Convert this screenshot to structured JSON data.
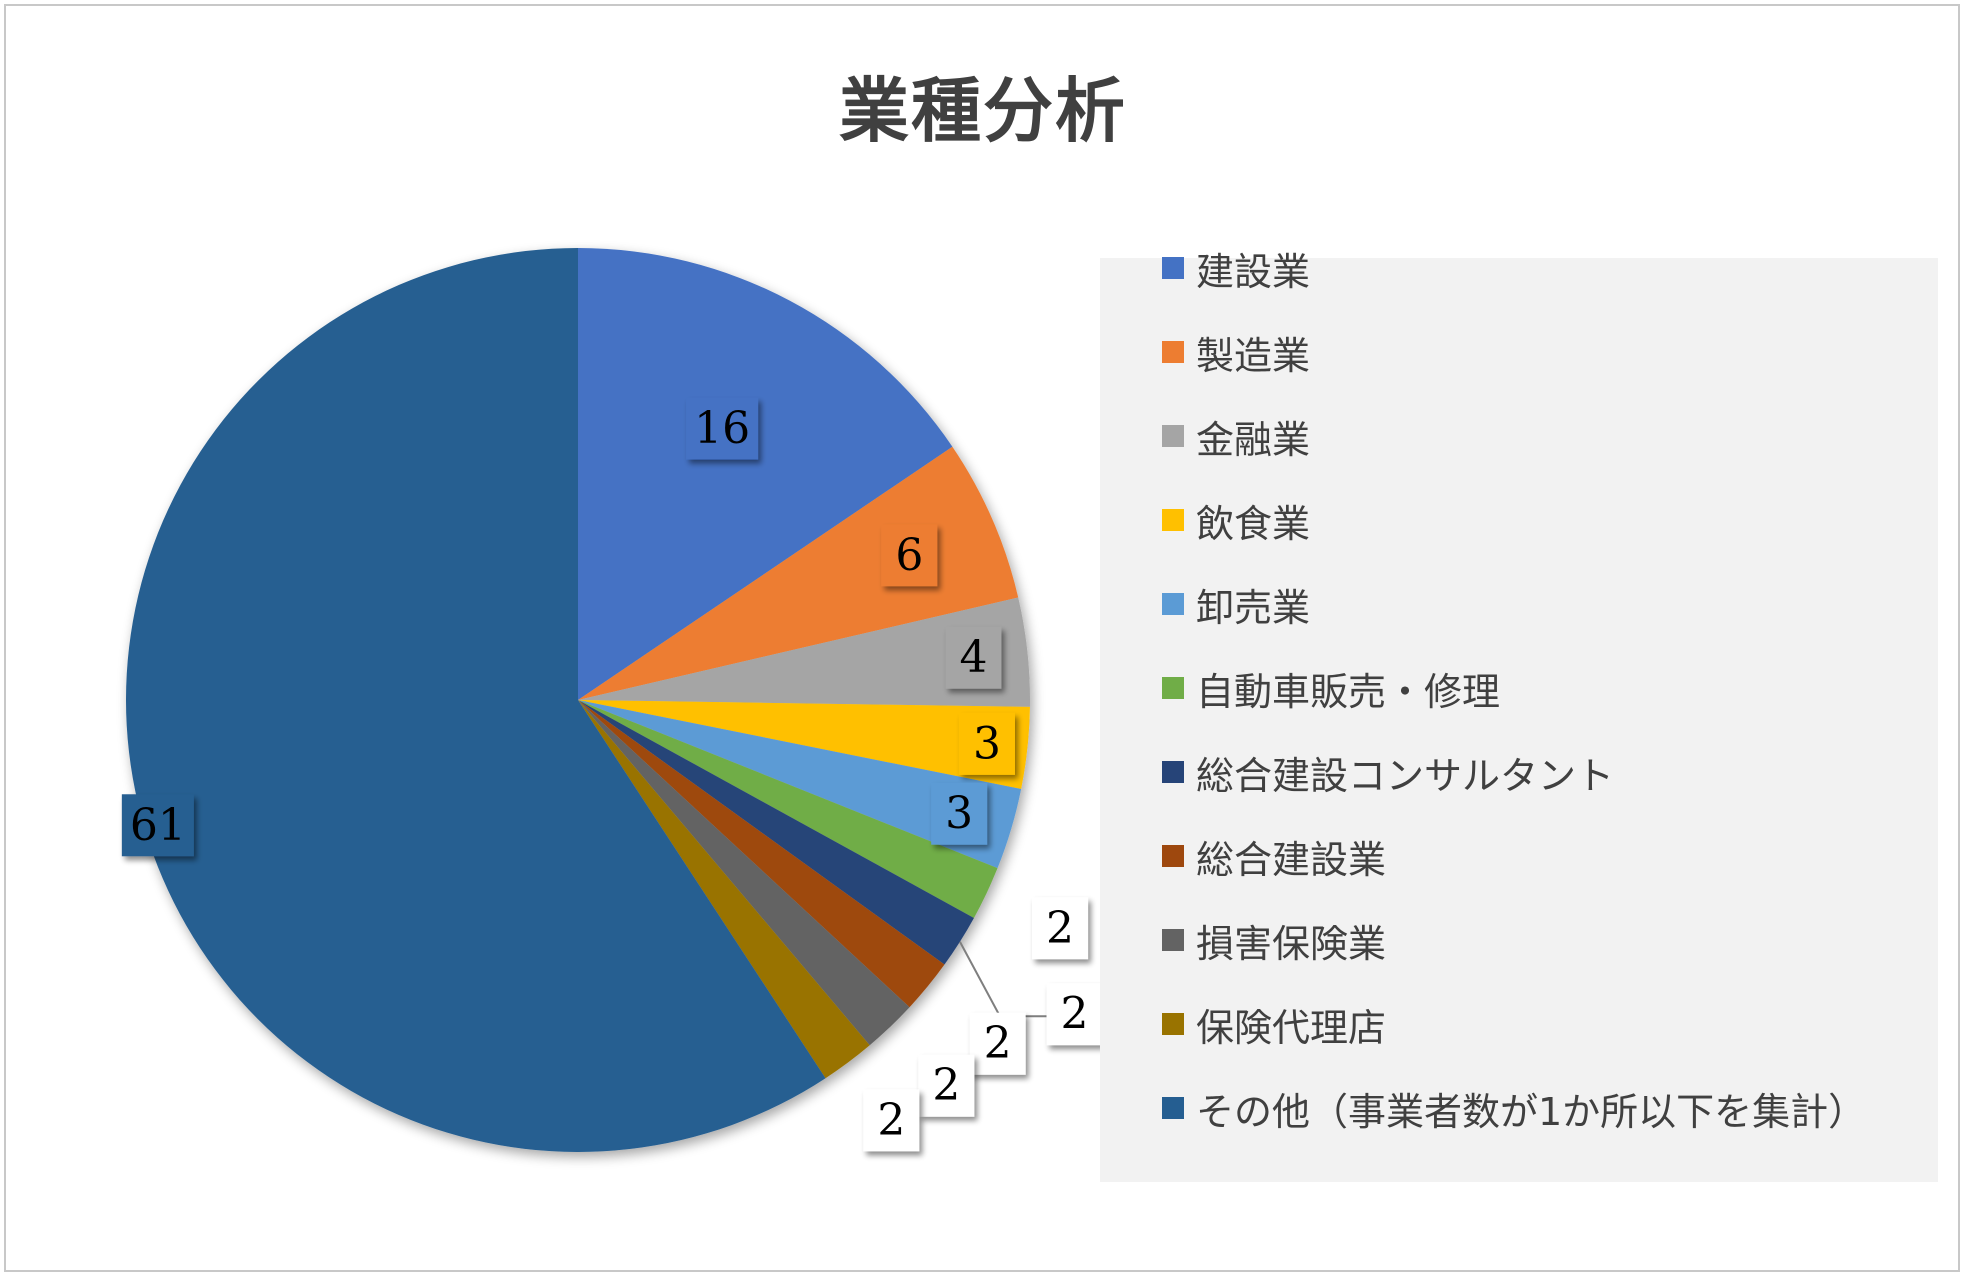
{
  "chart_data": {
    "type": "pie",
    "title": "業種分析",
    "categories": [
      "建設業",
      "製造業",
      "金融業",
      "飲食業",
      "卸売業",
      "自動車販売・修理",
      "総合建設コンサルタント",
      "総合建設業",
      "損害保険業",
      "保険代理店",
      "その他（事業者数が1か所以下を集計）"
    ],
    "values": [
      16,
      6,
      4,
      3,
      3,
      2,
      2,
      2,
      2,
      2,
      61
    ],
    "colors": [
      "#4472C4",
      "#ED7D31",
      "#A5A5A5",
      "#FFC000",
      "#5B9BD5",
      "#70AD47",
      "#264478",
      "#9E480E",
      "#636363",
      "#997300",
      "#255E91"
    ],
    "legend_position": "right"
  }
}
